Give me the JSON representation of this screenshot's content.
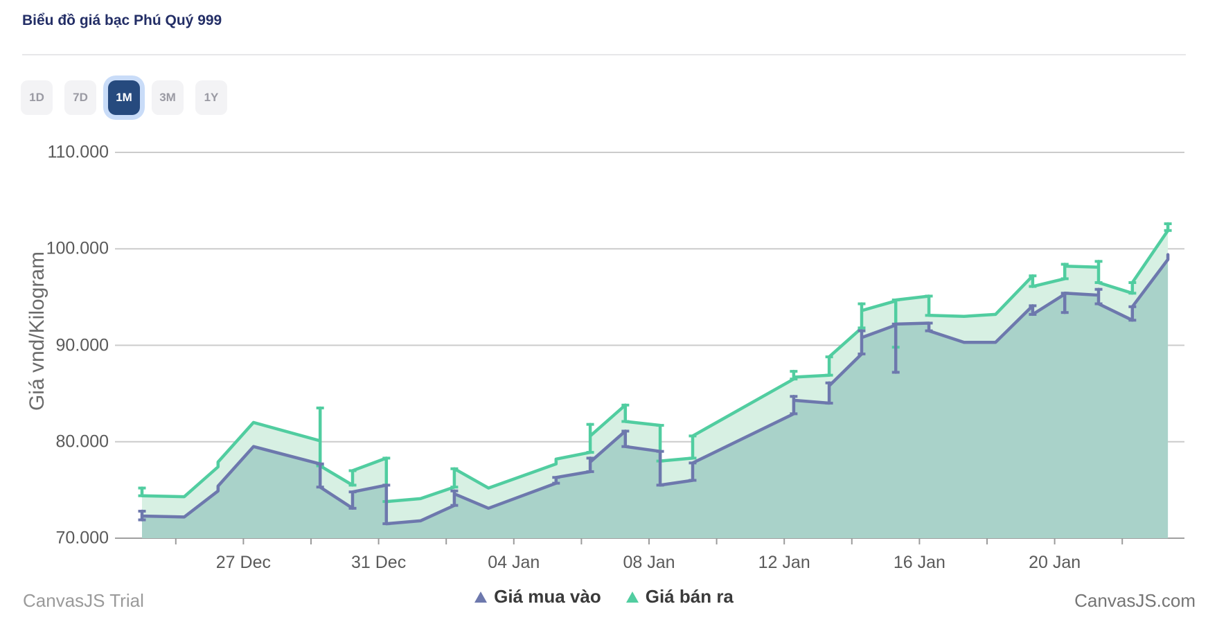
{
  "header": {
    "title": "Biểu đồ giá bạc Phú Quý 999"
  },
  "range_buttons": [
    {
      "label": "1D",
      "active": false
    },
    {
      "label": "7D",
      "active": false
    },
    {
      "label": "1M",
      "active": true
    },
    {
      "label": "3M",
      "active": false
    },
    {
      "label": "1Y",
      "active": false
    }
  ],
  "chart_data": {
    "type": "area",
    "ylabel": "Giá vnd/Kilogram",
    "unit_note": "values in thousand VND as labeled on axis",
    "ylim": [
      70,
      110
    ],
    "grid": true,
    "legend_position": "bottom",
    "y_ticks": [
      {
        "value": 110,
        "label": "110.000"
      },
      {
        "value": 100,
        "label": "100.000"
      },
      {
        "value": 90,
        "label": "90.000"
      },
      {
        "value": 80,
        "label": "80.000"
      },
      {
        "value": 70,
        "label": "70.000"
      }
    ],
    "x_ticks": [
      {
        "day": 3,
        "label": "27 Dec"
      },
      {
        "day": 7,
        "label": "31 Dec"
      },
      {
        "day": 11,
        "label": "04 Jan"
      },
      {
        "day": 15,
        "label": "08 Jan"
      },
      {
        "day": 19,
        "label": "12 Jan"
      },
      {
        "day": 23,
        "label": "16 Jan"
      },
      {
        "day": 27,
        "label": "20 Jan"
      }
    ],
    "x_range_days": [
      0,
      30.8
    ],
    "series": [
      {
        "name": "Giá mua vào",
        "color": "#6d78ad",
        "fill": "#a9d2c9",
        "points": [
          [
            0,
            71.9
          ],
          [
            0,
            72.8
          ],
          [
            0,
            72.3
          ],
          [
            1.25,
            72.2
          ],
          [
            2.25,
            74.9
          ],
          [
            2.25,
            75.4
          ],
          [
            3.3,
            79.5
          ],
          [
            5.27,
            77.7
          ],
          [
            5.27,
            75.3
          ],
          [
            6.23,
            73.1
          ],
          [
            6.23,
            74.8
          ],
          [
            7.23,
            75.5
          ],
          [
            7.23,
            71.5
          ],
          [
            8.24,
            71.8
          ],
          [
            9.24,
            73.4
          ],
          [
            9.24,
            74.9
          ],
          [
            9.24,
            74.6
          ],
          [
            10.25,
            73.1
          ],
          [
            12.25,
            75.7
          ],
          [
            12.25,
            76.3
          ],
          [
            13.26,
            76.9
          ],
          [
            13.26,
            78.3
          ],
          [
            13.26,
            77.9
          ],
          [
            14.3,
            81.1
          ],
          [
            14.3,
            79.5
          ],
          [
            15.33,
            79.0
          ],
          [
            15.33,
            75.5
          ],
          [
            16.29,
            76.0
          ],
          [
            16.29,
            77.8
          ],
          [
            19.28,
            82.9
          ],
          [
            19.28,
            84.7
          ],
          [
            19.28,
            84.3
          ],
          [
            20.33,
            84.0
          ],
          [
            20.33,
            86.1
          ],
          [
            20.33,
            85.8
          ],
          [
            21.29,
            89.1
          ],
          [
            21.29,
            91.5
          ],
          [
            21.29,
            90.8
          ],
          [
            22.3,
            92.1
          ],
          [
            22.3,
            87.2
          ],
          [
            22.3,
            92.2
          ],
          [
            23.28,
            92.3
          ],
          [
            23.28,
            91.5
          ],
          [
            24.32,
            90.3
          ],
          [
            25.25,
            90.3
          ],
          [
            26.35,
            94.1
          ],
          [
            26.35,
            93.2
          ],
          [
            27.3,
            95.3
          ],
          [
            27.3,
            93.4
          ],
          [
            27.3,
            95.4
          ],
          [
            28.3,
            95.2
          ],
          [
            28.3,
            95.8
          ],
          [
            28.3,
            94.3
          ],
          [
            29.3,
            92.6
          ],
          [
            29.3,
            94.0
          ],
          [
            30.35,
            98.9
          ],
          [
            30.35,
            99.4
          ]
        ]
      },
      {
        "name": "Giá bán ra",
        "color": "#51cda0",
        "fill": "#d7f0e3",
        "points": [
          [
            0,
            75.2
          ],
          [
            0,
            74.4
          ],
          [
            1.25,
            74.3
          ],
          [
            2.25,
            77.4
          ],
          [
            2.25,
            77.9
          ],
          [
            3.3,
            82.0
          ],
          [
            5.27,
            80.1
          ],
          [
            5.27,
            83.5
          ],
          [
            5.27,
            77.5
          ],
          [
            6.23,
            75.5
          ],
          [
            6.23,
            77.0
          ],
          [
            7.23,
            78.3
          ],
          [
            7.23,
            73.8
          ],
          [
            8.24,
            74.1
          ],
          [
            9.24,
            75.3
          ],
          [
            9.24,
            77.2
          ],
          [
            10.25,
            75.2
          ],
          [
            12.25,
            77.7
          ],
          [
            12.25,
            78.2
          ],
          [
            13.26,
            78.9
          ],
          [
            13.26,
            81.8
          ],
          [
            13.26,
            80.6
          ],
          [
            14.3,
            83.8
          ],
          [
            14.3,
            82.1
          ],
          [
            15.33,
            81.7
          ],
          [
            15.33,
            78.0
          ],
          [
            16.29,
            78.3
          ],
          [
            16.29,
            80.6
          ],
          [
            19.28,
            86.5
          ],
          [
            19.28,
            87.3
          ],
          [
            19.28,
            86.7
          ],
          [
            20.33,
            86.9
          ],
          [
            20.33,
            88.8
          ],
          [
            21.29,
            91.8
          ],
          [
            21.29,
            94.3
          ],
          [
            21.29,
            93.6
          ],
          [
            22.3,
            94.6
          ],
          [
            22.3,
            89.8
          ],
          [
            22.3,
            94.7
          ],
          [
            23.28,
            95.1
          ],
          [
            23.28,
            93.1
          ],
          [
            24.32,
            93.0
          ],
          [
            25.25,
            93.2
          ],
          [
            26.35,
            97.2
          ],
          [
            26.35,
            96.1
          ],
          [
            27.3,
            96.9
          ],
          [
            27.3,
            98.4
          ],
          [
            27.3,
            98.2
          ],
          [
            28.3,
            98.1
          ],
          [
            28.3,
            98.7
          ],
          [
            28.3,
            96.5
          ],
          [
            29.3,
            95.4
          ],
          [
            29.3,
            96.5
          ],
          [
            30.35,
            101.9
          ],
          [
            30.35,
            102.6
          ]
        ]
      }
    ],
    "legend": [
      {
        "label": "Giá mua vào",
        "color": "#6d78ad"
      },
      {
        "label": "Giá bán ra",
        "color": "#51cda0"
      }
    ]
  },
  "footer": {
    "left": "CanvasJS Trial",
    "right": "CanvasJS.com"
  }
}
